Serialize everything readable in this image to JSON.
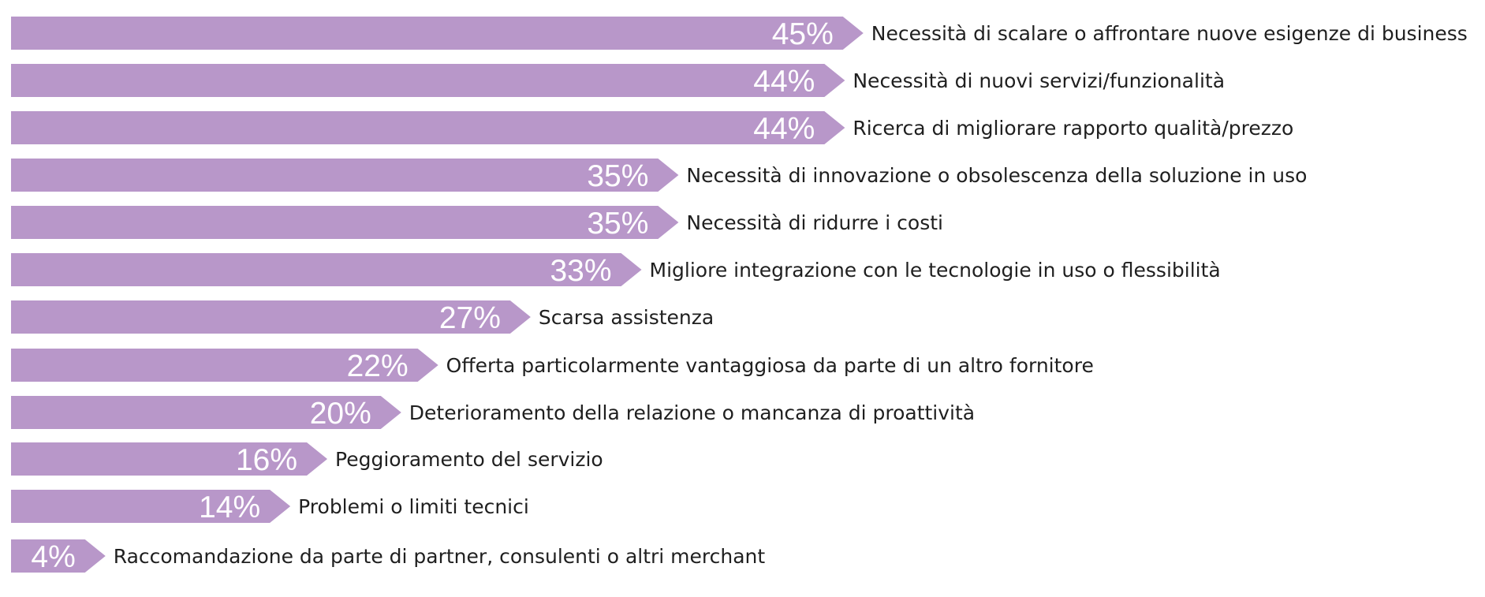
{
  "chart_data": {
    "type": "bar",
    "orientation": "horizontal",
    "unit": "%",
    "title": "",
    "xlabel": "",
    "ylabel": "",
    "xlim": [
      0,
      45
    ],
    "grid": false,
    "bar_color": "#b897c9",
    "value_text_color": "#ffffff",
    "label_text_color": "#1f1f1f",
    "categories": [
      "Necessità di scalare o affrontare nuove esigenze di business",
      "Necessità di nuovi servizi/funzionalità",
      "Ricerca di migliorare rapporto qualità/prezzo",
      "Necessità di innovazione o obsolescenza della soluzione in uso",
      "Necessità di ridurre i costi",
      "Migliore integrazione con le tecnologie in uso o flessibilità",
      "Scarsa assistenza",
      "Offerta particolarmente vantaggiosa da parte di un altro fornitore",
      "Deterioramento della relazione o mancanza di proattività",
      "Peggioramento del servizio",
      "Problemi o limiti tecnici",
      "Raccomandazione da parte di partner, consulenti o altri merchant"
    ],
    "values": [
      45,
      44,
      44,
      35,
      35,
      33,
      27,
      22,
      20,
      16,
      14,
      4
    ],
    "value_labels": [
      "45%",
      "44%",
      "44%",
      "35%",
      "35%",
      "33%",
      "27%",
      "22%",
      "20%",
      "16%",
      "14%",
      "4%"
    ]
  }
}
